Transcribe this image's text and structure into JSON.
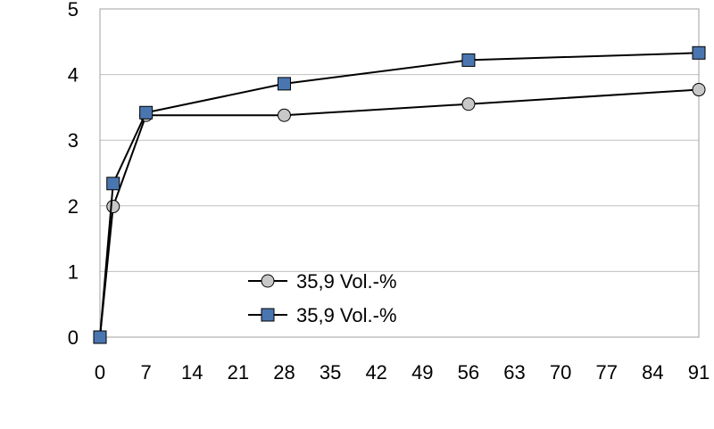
{
  "chart_data": {
    "type": "line",
    "title": "",
    "xlabel": "",
    "ylabel": "",
    "xlim": [
      0,
      91
    ],
    "ylim": [
      0,
      5
    ],
    "xticks": [
      "0",
      "7",
      "14",
      "21",
      "28",
      "35",
      "42",
      "49",
      "56",
      "63",
      "70",
      "77",
      "84",
      "91"
    ],
    "yticks": [
      "0",
      "1",
      "2",
      "3",
      "4",
      "5"
    ],
    "grid": "horizontal",
    "legend_position": "bottom-center",
    "series": [
      {
        "name": "35,9 Vol.-%",
        "marker": "circle",
        "marker_color": "#c8c8c8",
        "line_color": "#000000",
        "x": [
          0,
          2,
          7,
          28,
          56,
          91
        ],
        "y": [
          0,
          1.99,
          3.38,
          3.38,
          3.55,
          3.77
        ]
      },
      {
        "name": "35,9 Vol.-%",
        "marker": "square",
        "marker_color": "#4a76b0",
        "line_color": "#000000",
        "x": [
          0,
          2,
          7,
          28,
          56,
          91
        ],
        "y": [
          0,
          2.34,
          3.42,
          3.86,
          4.22,
          4.33
        ]
      }
    ]
  }
}
